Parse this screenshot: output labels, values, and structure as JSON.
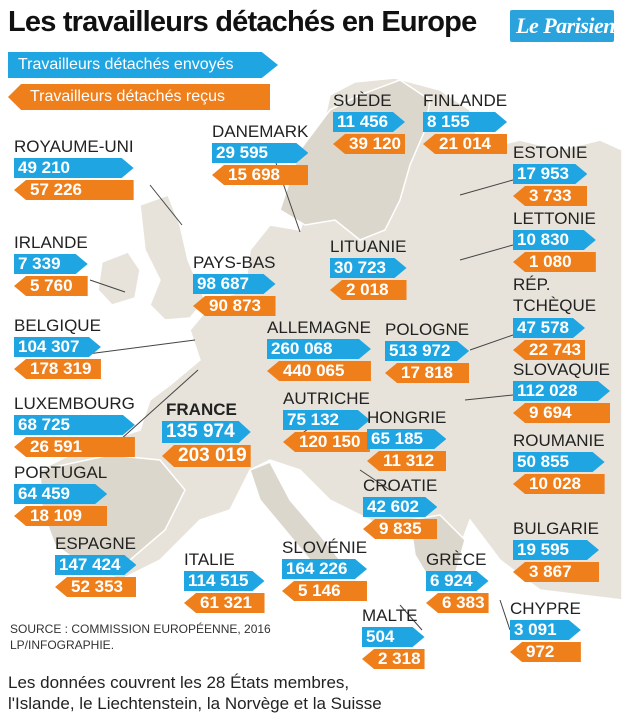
{
  "title": "Les travailleurs détachés en Europe",
  "logo": "Le Parisien",
  "legend": {
    "sent_label": "Travailleurs détachés envoyés",
    "received_label": "Travailleurs détachés reçus"
  },
  "colors": {
    "sent": "#1fa6e2",
    "received": "#ef7f1a",
    "land": "#e7e3da",
    "sea": "#ffffff"
  },
  "countries": [
    {
      "name": "SUÈDE",
      "sent": "11 456",
      "received": "39 120"
    },
    {
      "name": "FINLANDE",
      "sent": "8 155",
      "received": "21 014"
    },
    {
      "name": "ROYAUME-UNI",
      "sent": "49 210",
      "received": "57 226"
    },
    {
      "name": "DANEMARK",
      "sent": "29 595",
      "received": "15 698"
    },
    {
      "name": "ESTONIE",
      "sent": "17 953",
      "received": "3 733"
    },
    {
      "name": "LETTONIE",
      "sent": "10 830",
      "received": "1 080"
    },
    {
      "name": "IRLANDE",
      "sent": "7 339",
      "received": "5 760"
    },
    {
      "name": "LITUANIE",
      "sent": "30 723",
      "received": "2 018"
    },
    {
      "name": "PAYS-BAS",
      "sent": "98 687",
      "received": "90 873"
    },
    {
      "name": "RÉP. TCHÈQUE",
      "sent": "47 578",
      "received": "22 743"
    },
    {
      "name": "BELGIQUE",
      "sent": "104 307",
      "received": "178 319"
    },
    {
      "name": "ALLEMAGNE",
      "sent": "260 068",
      "received": "440 065"
    },
    {
      "name": "POLOGNE",
      "sent": "513 972",
      "received": "17 818"
    },
    {
      "name": "SLOVAQUIE",
      "sent": "112 028",
      "received": "9 694"
    },
    {
      "name": "LUXEMBOURG",
      "sent": "68 725",
      "received": "26 591"
    },
    {
      "name": "FRANCE",
      "sent": "135 974",
      "received": "203 019"
    },
    {
      "name": "AUTRICHE",
      "sent": "75 132",
      "received": "120 150"
    },
    {
      "name": "HONGRIE",
      "sent": "65 185",
      "received": "11 312"
    },
    {
      "name": "ROUMANIE",
      "sent": "50 855",
      "received": "10 028"
    },
    {
      "name": "PORTUGAL",
      "sent": "64 459",
      "received": "18 109"
    },
    {
      "name": "CROATIE",
      "sent": "42 602",
      "received": "9 835"
    },
    {
      "name": "BULGARIE",
      "sent": "19 595",
      "received": "3 867"
    },
    {
      "name": "ESPAGNE",
      "sent": "147 424",
      "received": "52 353"
    },
    {
      "name": "ITALIE",
      "sent": "114 515",
      "received": "61 321"
    },
    {
      "name": "SLOVÉNIE",
      "sent": "164 226",
      "received": "5 146"
    },
    {
      "name": "GRÈCE",
      "sent": "6 924",
      "received": "6 383"
    },
    {
      "name": "CHYPRE",
      "sent": "3 091",
      "received": "972"
    },
    {
      "name": "MALTE",
      "sent": "504",
      "received": "2 318"
    }
  ],
  "source": [
    "SOURCE : COMMISSION EUROPÉENNE, 2016",
    "LP/INFOGRAPHIE."
  ],
  "note": [
    "Les données couvrent les 28 États membres,",
    "l'Islande, le Liechtenstein, la Norvège et la Suisse"
  ]
}
